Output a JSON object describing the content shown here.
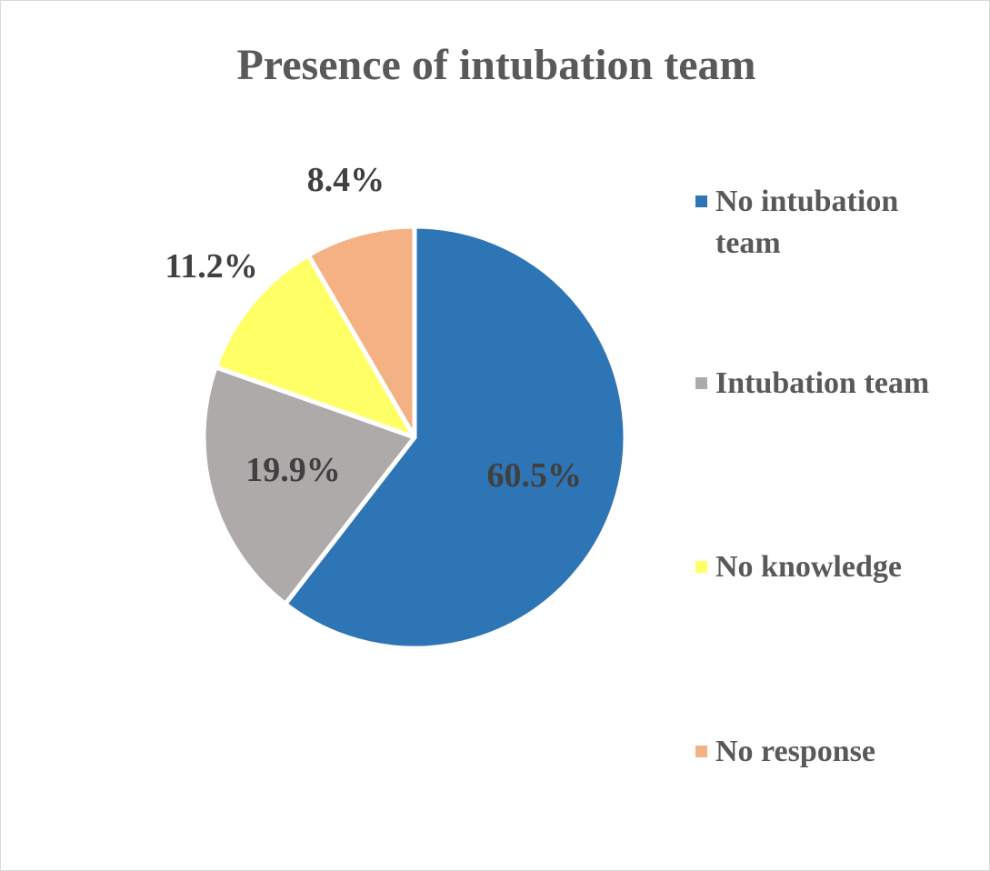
{
  "chart_data": {
    "type": "pie",
    "title": "Presence of intubation team",
    "categories": [
      "No intubation team",
      "Intubation team",
      "No knowledge",
      "No response"
    ],
    "values": [
      60.5,
      19.9,
      11.2,
      8.4
    ],
    "value_labels": [
      "60.5%",
      "19.9%",
      "11.2%",
      "8.4%"
    ],
    "colors": [
      "#2e75b6",
      "#aeaaaa",
      "#ffff66",
      "#f4b183"
    ],
    "legend": "right"
  }
}
